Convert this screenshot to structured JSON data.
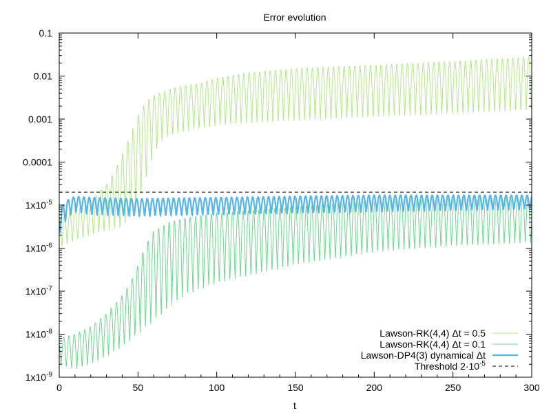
{
  "chart_data": {
    "type": "line",
    "title": "Error evolution",
    "xlabel": "t",
    "ylabel": "",
    "xlim": [
      0,
      300
    ],
    "ylim": [
      1e-09,
      0.1
    ],
    "yscale": "log",
    "grid": false,
    "legend_position": "bottom-right",
    "x_ticks": [
      {
        "value": 0,
        "label": "0"
      },
      {
        "value": 50,
        "label": "50"
      },
      {
        "value": 100,
        "label": "100"
      },
      {
        "value": 150,
        "label": "150"
      },
      {
        "value": 200,
        "label": "200"
      },
      {
        "value": 250,
        "label": "250"
      },
      {
        "value": 300,
        "label": "300"
      }
    ],
    "y_ticks": [
      {
        "value": 1e-09,
        "mantissa": "1x10",
        "exponent": "-9"
      },
      {
        "value": 1e-08,
        "mantissa": "1x10",
        "exponent": "-8"
      },
      {
        "value": 1e-07,
        "mantissa": "1x10",
        "exponent": "-7"
      },
      {
        "value": 1e-06,
        "mantissa": "1x10",
        "exponent": "-6"
      },
      {
        "value": 1e-05,
        "mantissa": "1x10",
        "exponent": "-5"
      },
      {
        "value": 0.0001,
        "mantissa": "0.0001",
        "exponent": ""
      },
      {
        "value": 0.001,
        "mantissa": "0.001",
        "exponent": ""
      },
      {
        "value": 0.01,
        "mantissa": "0.01",
        "exponent": ""
      },
      {
        "value": 0.1,
        "mantissa": "0.1",
        "exponent": ""
      }
    ],
    "series": [
      {
        "name": "Lawson-RK(4,4) Δt = 0.5",
        "color": "#b4e68c",
        "style": "solid",
        "period": 3.35,
        "upper_envelope": [
          [
            0,
            5e-06
          ],
          [
            10,
            8e-06
          ],
          [
            20,
            1.2e-05
          ],
          [
            25,
            2e-05
          ],
          [
            30,
            3e-05
          ],
          [
            35,
            6e-05
          ],
          [
            40,
            0.00015
          ],
          [
            45,
            0.0004
          ],
          [
            50,
            0.0012
          ],
          [
            55,
            0.0025
          ],
          [
            60,
            0.0035
          ],
          [
            70,
            0.005
          ],
          [
            80,
            0.006
          ],
          [
            90,
            0.007
          ],
          [
            100,
            0.009
          ],
          [
            120,
            0.012
          ],
          [
            150,
            0.015
          ],
          [
            200,
            0.018
          ],
          [
            250,
            0.022
          ],
          [
            300,
            0.028
          ]
        ],
        "lower_envelope": [
          [
            0,
            1e-06
          ],
          [
            10,
            1.5e-06
          ],
          [
            20,
            2e-06
          ],
          [
            30,
            2.5e-06
          ],
          [
            40,
            3e-06
          ],
          [
            45,
            5e-06
          ],
          [
            50,
            1e-05
          ],
          [
            55,
            4e-05
          ],
          [
            60,
            0.00015
          ],
          [
            65,
            0.0003
          ],
          [
            70,
            0.0004
          ],
          [
            80,
            0.0005
          ],
          [
            100,
            0.0007
          ],
          [
            150,
            0.0009
          ],
          [
            200,
            0.0011
          ],
          [
            250,
            0.0013
          ],
          [
            300,
            0.0016
          ]
        ]
      },
      {
        "name": "Lawson-RK(4,4) Δt = 0.1",
        "color": "#6fd68f",
        "style": "solid",
        "period": 3.35,
        "upper_envelope": [
          [
            0,
            8e-09
          ],
          [
            10,
            1e-08
          ],
          [
            20,
            1.5e-08
          ],
          [
            30,
            3e-08
          ],
          [
            40,
            8e-08
          ],
          [
            45,
            1.5e-07
          ],
          [
            50,
            4e-07
          ],
          [
            55,
            1.2e-06
          ],
          [
            60,
            2.5e-06
          ],
          [
            70,
            4e-06
          ],
          [
            80,
            5e-06
          ],
          [
            100,
            6.5e-06
          ],
          [
            150,
            9e-06
          ],
          [
            200,
            1.3e-05
          ],
          [
            250,
            1.5e-05
          ],
          [
            300,
            1.6e-05
          ]
        ],
        "lower_envelope": [
          [
            0,
            2e-09
          ],
          [
            10,
            1.5e-09
          ],
          [
            20,
            2e-09
          ],
          [
            30,
            3e-09
          ],
          [
            40,
            5e-09
          ],
          [
            50,
            1e-08
          ],
          [
            60,
            2e-08
          ],
          [
            70,
            4e-08
          ],
          [
            80,
            8e-08
          ],
          [
            100,
            1.5e-07
          ],
          [
            150,
            4e-07
          ],
          [
            200,
            8e-07
          ],
          [
            250,
            1.1e-06
          ],
          [
            300,
            1.3e-06
          ]
        ]
      },
      {
        "name": "Lawson-DP4(3) dynamical Δt",
        "color": "#56b4e9",
        "style": "solid",
        "period": 3.35,
        "upper_envelope": [
          [
            0,
            8e-06
          ],
          [
            5,
            1.3e-05
          ],
          [
            10,
            1.6e-05
          ],
          [
            20,
            1.5e-05
          ],
          [
            50,
            1.4e-05
          ],
          [
            100,
            1.5e-05
          ],
          [
            150,
            1.6e-05
          ],
          [
            200,
            1.7e-05
          ],
          [
            250,
            1.7e-05
          ],
          [
            300,
            1.7e-05
          ]
        ],
        "lower_envelope": [
          [
            0,
            2e-06
          ],
          [
            5,
            5e-06
          ],
          [
            10,
            7e-06
          ],
          [
            20,
            6e-06
          ],
          [
            50,
            5.5e-06
          ],
          [
            100,
            6e-06
          ],
          [
            150,
            6.5e-06
          ],
          [
            200,
            7e-06
          ],
          [
            250,
            7.5e-06
          ],
          [
            300,
            8e-06
          ]
        ]
      },
      {
        "name": "Threshold 2·10",
        "name_exponent": "-5",
        "color": "#000000",
        "style": "dashed",
        "value": 2e-05
      }
    ]
  }
}
